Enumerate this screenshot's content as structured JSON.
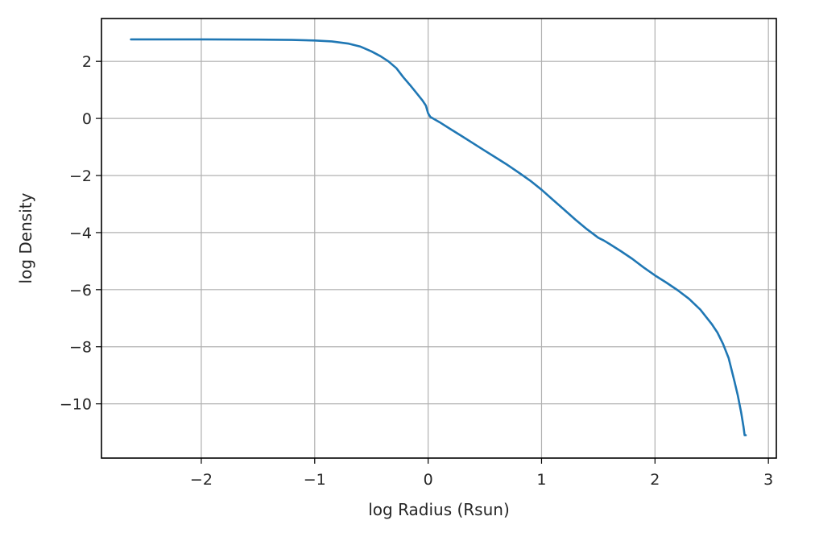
{
  "chart_data": {
    "type": "line",
    "title": "",
    "xlabel": "log Radius (Rsun)",
    "ylabel": "log Density",
    "xlim": [
      -2.88,
      3.07
    ],
    "ylim": [
      -11.9,
      3.5
    ],
    "xticks": [
      -2,
      -1,
      0,
      1,
      2,
      3
    ],
    "xtick_labels": [
      "−2",
      "−1",
      "0",
      "1",
      "2",
      "3"
    ],
    "yticks": [
      2,
      0,
      -2,
      -4,
      -6,
      -8,
      -10
    ],
    "ytick_labels": [
      "2",
      "0",
      "−2",
      "−4",
      "−6",
      "−8",
      "−10"
    ],
    "grid": true,
    "legend": "none",
    "series_color": "#1f77b4",
    "series": [
      {
        "x": [
          -2.62,
          -2.0,
          -1.5,
          -1.2,
          -1.0,
          -0.85,
          -0.7,
          -0.6,
          -0.5,
          -0.42,
          -0.35,
          -0.28,
          -0.22,
          -0.16,
          -0.1,
          -0.05,
          -0.02,
          0.0,
          0.02,
          0.1,
          0.2,
          0.3,
          0.4,
          0.5,
          0.6,
          0.7,
          0.8,
          0.9,
          1.0,
          1.1,
          1.2,
          1.3,
          1.4,
          1.5,
          1.55,
          1.6,
          1.7,
          1.8,
          1.9,
          2.0,
          2.1,
          2.2,
          2.3,
          2.4,
          2.5,
          2.55,
          2.6,
          2.65,
          2.7,
          2.73,
          2.76,
          2.78,
          2.79,
          2.8
        ],
        "y": [
          2.77,
          2.77,
          2.76,
          2.75,
          2.73,
          2.7,
          2.62,
          2.52,
          2.35,
          2.18,
          2.0,
          1.76,
          1.45,
          1.17,
          0.88,
          0.63,
          0.45,
          0.18,
          0.05,
          -0.13,
          -0.38,
          -0.63,
          -0.88,
          -1.13,
          -1.38,
          -1.63,
          -1.9,
          -2.18,
          -2.5,
          -2.85,
          -3.2,
          -3.55,
          -3.88,
          -4.18,
          -4.28,
          -4.4,
          -4.65,
          -4.92,
          -5.22,
          -5.5,
          -5.75,
          -6.02,
          -6.32,
          -6.7,
          -7.2,
          -7.5,
          -7.9,
          -8.4,
          -9.2,
          -9.7,
          -10.3,
          -10.8,
          -11.1,
          -11.1
        ]
      }
    ]
  }
}
